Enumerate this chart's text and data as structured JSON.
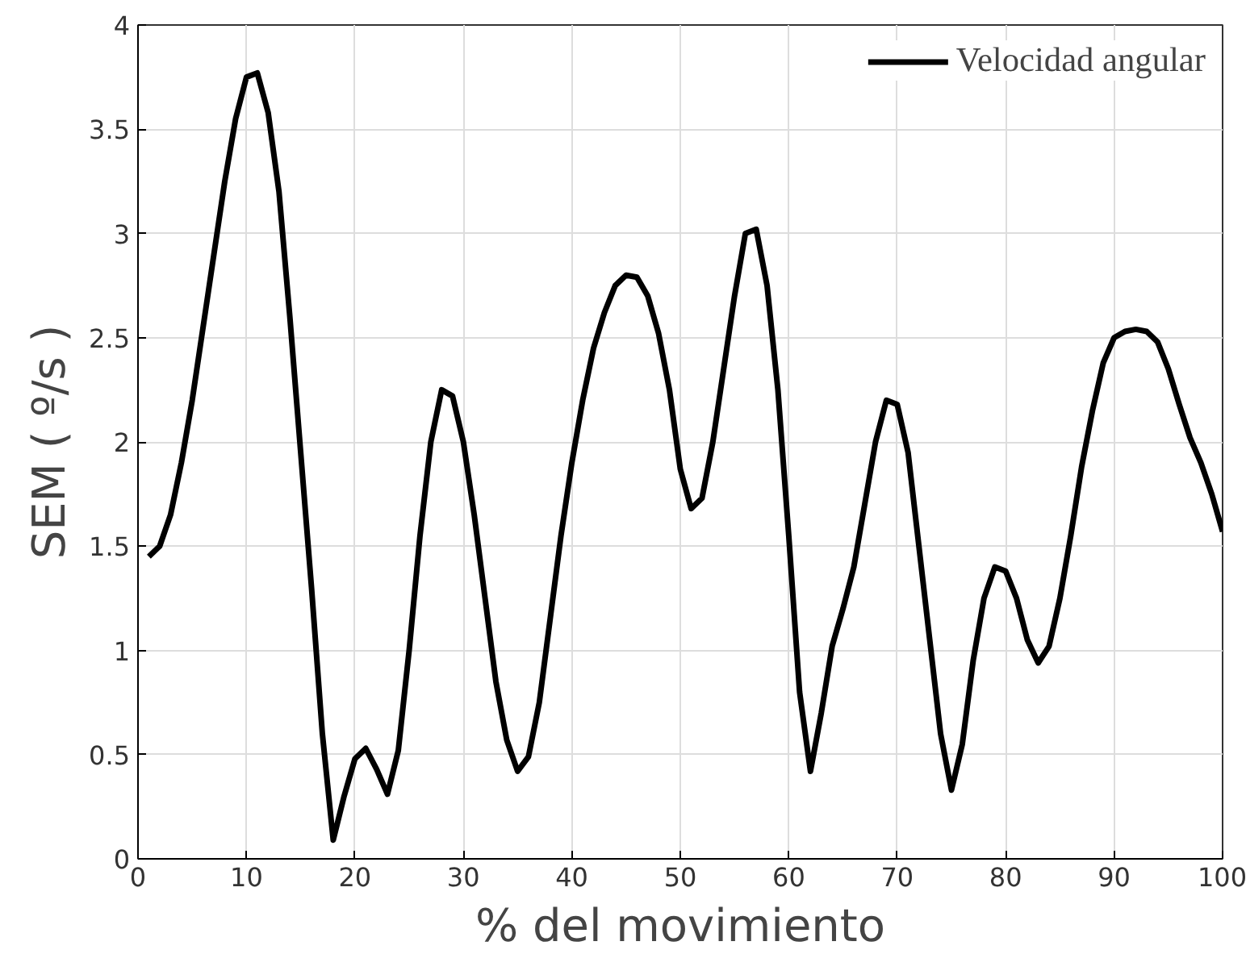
{
  "chart_data": {
    "type": "line",
    "xlabel": "% del movimiento",
    "ylabel": "SEM ( º/s )",
    "x": [
      1,
      2,
      3,
      4,
      5,
      6,
      7,
      8,
      9,
      10,
      11,
      12,
      13,
      14,
      15,
      16,
      17,
      18,
      19,
      20,
      21,
      22,
      23,
      24,
      25,
      26,
      27,
      28,
      29,
      30,
      31,
      32,
      33,
      34,
      35,
      36,
      37,
      38,
      39,
      40,
      41,
      42,
      43,
      44,
      45,
      46,
      47,
      48,
      49,
      50,
      51,
      52,
      53,
      54,
      55,
      56,
      57,
      58,
      59,
      60,
      61,
      62,
      63,
      64,
      65,
      66,
      67,
      68,
      69,
      70,
      71,
      72,
      73,
      74,
      75,
      76,
      77,
      78,
      79,
      80,
      81,
      82,
      83,
      84,
      85,
      86,
      87,
      88,
      89,
      90,
      91,
      92,
      93,
      94,
      95,
      96,
      97,
      98,
      99,
      100
    ],
    "series": [
      {
        "name": "Velocidad angular",
        "color": "#000000",
        "values": [
          1.45,
          1.5,
          1.65,
          1.9,
          2.2,
          2.55,
          2.9,
          3.25,
          3.55,
          3.75,
          3.77,
          3.58,
          3.2,
          2.6,
          1.95,
          1.3,
          0.6,
          0.09,
          0.3,
          0.48,
          0.53,
          0.43,
          0.31,
          0.52,
          1.0,
          1.55,
          2.0,
          2.25,
          2.22,
          2.0,
          1.65,
          1.25,
          0.85,
          0.57,
          0.42,
          0.49,
          0.75,
          1.15,
          1.55,
          1.9,
          2.2,
          2.45,
          2.62,
          2.75,
          2.8,
          2.79,
          2.7,
          2.52,
          2.25,
          1.87,
          1.68,
          1.73,
          2.0,
          2.35,
          2.7,
          3.0,
          3.02,
          2.75,
          2.25,
          1.55,
          0.8,
          0.42,
          0.7,
          1.02,
          1.2,
          1.4,
          1.7,
          2.0,
          2.2,
          2.18,
          1.95,
          1.5,
          1.05,
          0.6,
          0.33,
          0.55,
          0.95,
          1.25,
          1.4,
          1.38,
          1.25,
          1.05,
          0.94,
          1.02,
          1.25,
          1.55,
          1.88,
          2.15,
          2.38,
          2.5,
          2.53,
          2.54,
          2.53,
          2.48,
          2.35,
          2.18,
          2.02,
          1.9,
          1.75,
          1.57
        ]
      }
    ],
    "xlim": [
      0,
      100
    ],
    "xticks": [
      0,
      10,
      20,
      30,
      40,
      50,
      60,
      70,
      80,
      90,
      100
    ],
    "ylim": [
      0,
      4
    ],
    "yticks": [
      0,
      0.5,
      1,
      1.5,
      2,
      2.5,
      3,
      3.5,
      4
    ],
    "grid": true,
    "legend": "top right",
    "line_style": "solid",
    "marker": "none"
  }
}
